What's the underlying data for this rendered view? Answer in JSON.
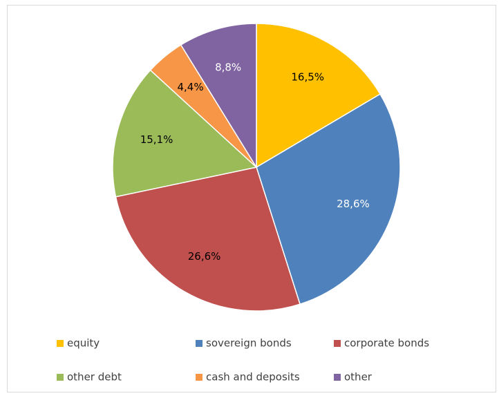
{
  "chart_data": {
    "type": "pie",
    "categories": [
      "equity",
      "sovereign bonds",
      "corporate bonds",
      "other debt",
      "cash and deposits",
      "other"
    ],
    "values": [
      16.5,
      28.6,
      26.6,
      15.1,
      4.4,
      8.8
    ],
    "value_labels": [
      "16,5%",
      "28,6%",
      "26,6%",
      "15,1%",
      "4,4%",
      "8,8%"
    ],
    "colors": [
      "#ffc000",
      "#4f81bd",
      "#c0504d",
      "#9bbb59",
      "#f79646",
      "#8064a2"
    ],
    "label_colors": [
      "#000000",
      "#ffffff",
      "#000000",
      "#000000",
      "#000000",
      "#ffffff"
    ],
    "legend": "bottom"
  }
}
